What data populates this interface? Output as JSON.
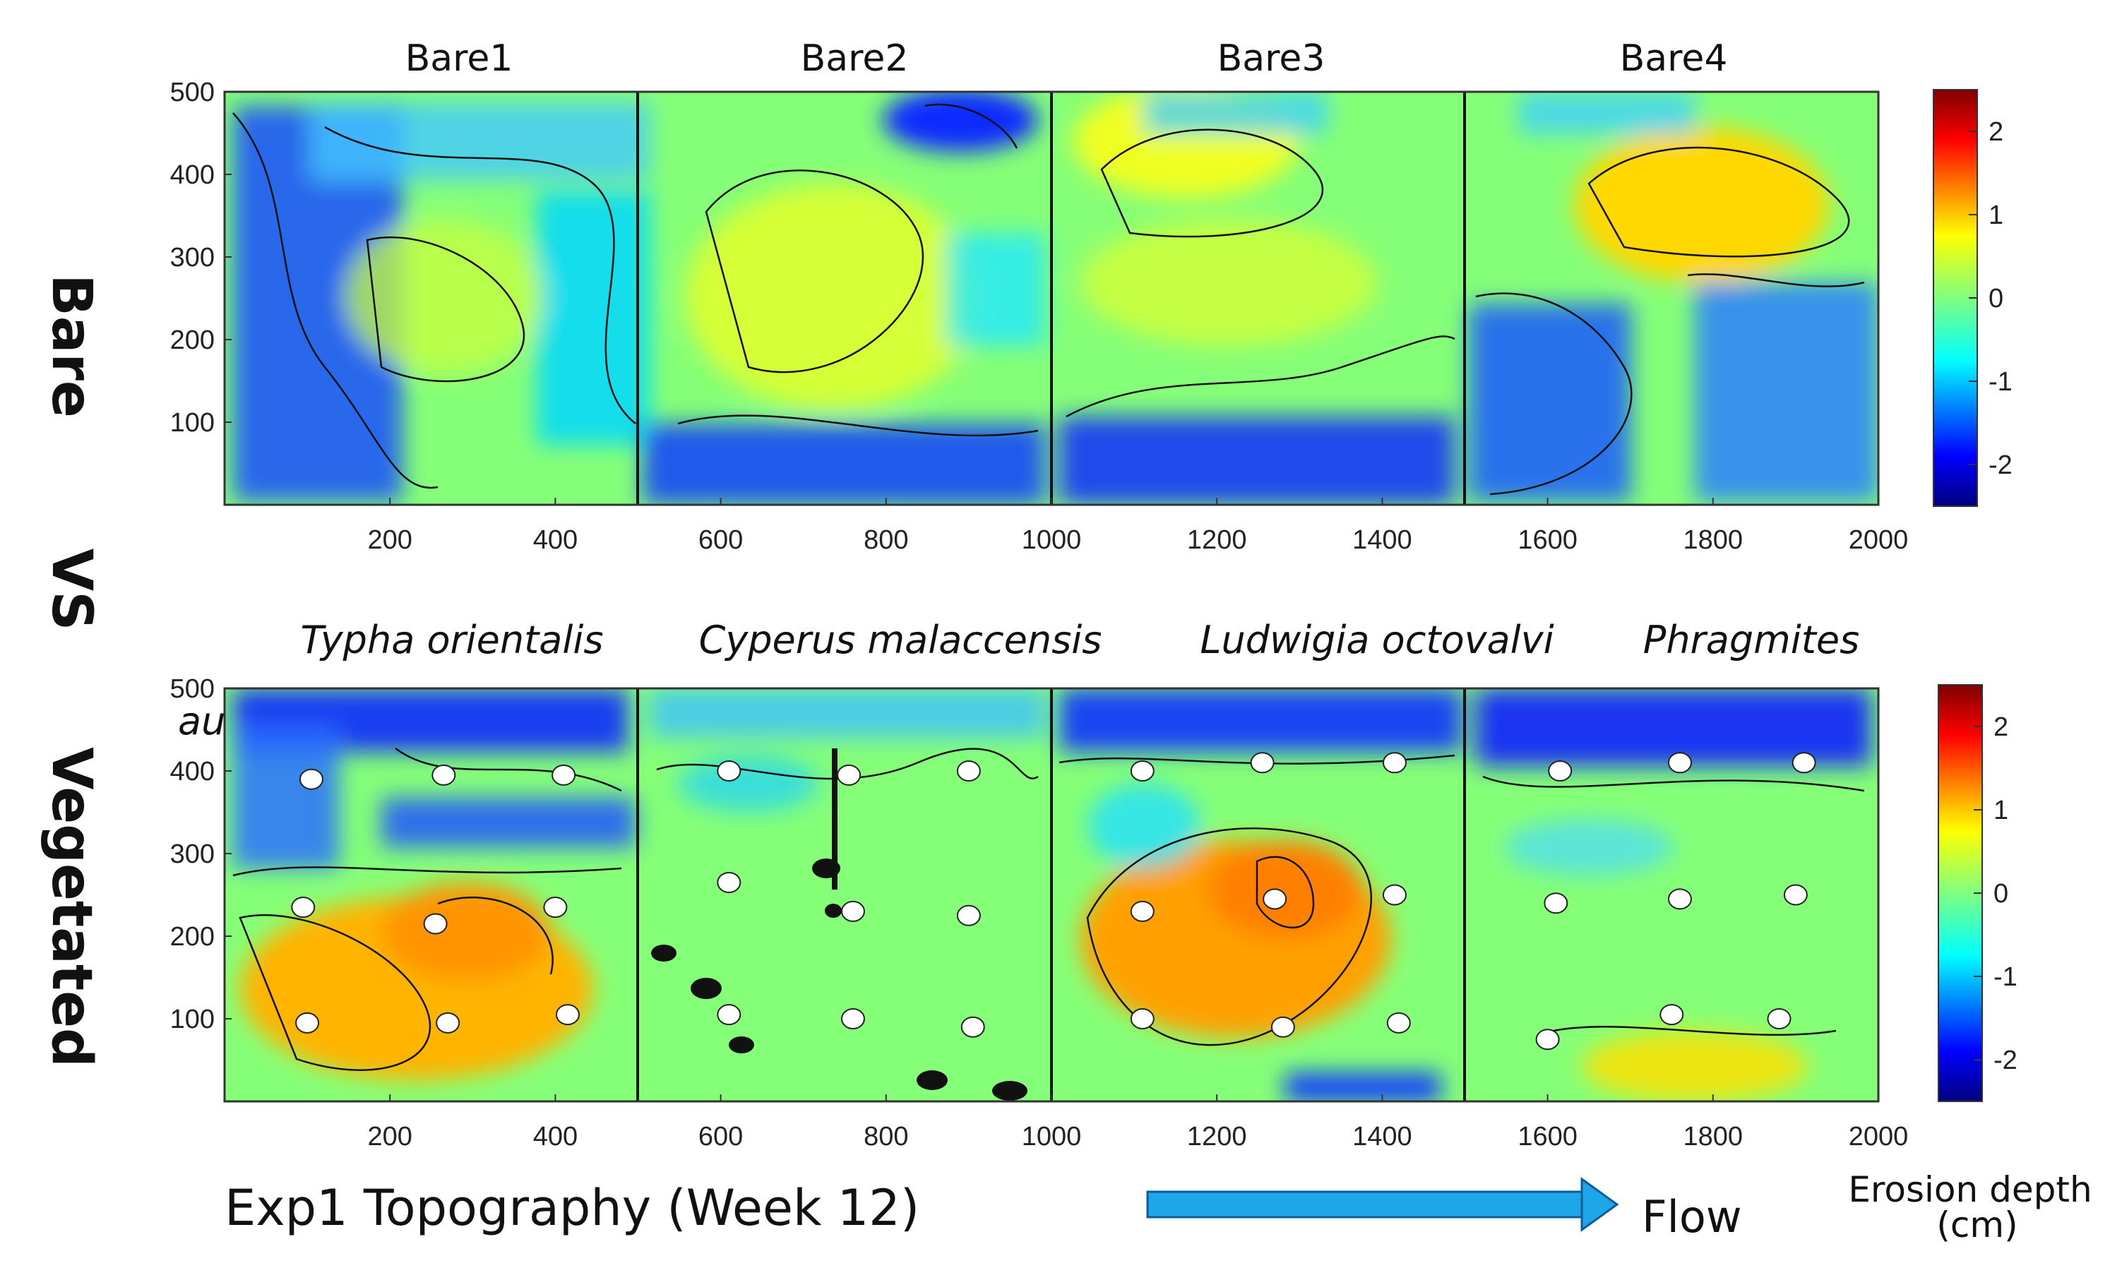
{
  "chart_data": [
    {
      "type": "heatmap",
      "row_label": "Bare",
      "panel_titles": [
        "Bare1",
        "Bare2",
        "Bare3",
        "Bare4"
      ],
      "x_ticks": [
        200,
        400,
        600,
        800,
        1000,
        1200,
        1400,
        1600,
        1800,
        2000
      ],
      "y_ticks": [
        100,
        200,
        300,
        400,
        500
      ],
      "xlim": [
        0,
        2000
      ],
      "ylim": [
        0,
        500
      ],
      "colorbar_ticks": [
        -2,
        -1,
        0,
        1,
        2
      ],
      "clim": [
        -2.5,
        2.5
      ],
      "colormap": "jet",
      "vegetation_markers": []
    },
    {
      "type": "heatmap",
      "row_label": "Vegetated",
      "panel_titles": [
        "Typha orientalis",
        "Cyperus malaccensis",
        "Ludwigia octovalvi",
        "Phragmites"
      ],
      "panel_title_overflow": "australis",
      "x_ticks": [
        200,
        400,
        600,
        800,
        1000,
        1200,
        1400,
        1600,
        1800,
        2000
      ],
      "y_ticks": [
        100,
        200,
        300,
        400,
        500
      ],
      "xlim": [
        0,
        2000
      ],
      "ylim": [
        0,
        500
      ],
      "colorbar_ticks": [
        -2,
        -1,
        0,
        1,
        2
      ],
      "clim": [
        -2.5,
        2.5
      ],
      "colormap": "jet",
      "vegetation_markers": [
        [
          105,
          390
        ],
        [
          265,
          395
        ],
        [
          410,
          395
        ],
        [
          95,
          235
        ],
        [
          255,
          215
        ],
        [
          400,
          235
        ],
        [
          100,
          95
        ],
        [
          270,
          95
        ],
        [
          415,
          105
        ],
        [
          610,
          400
        ],
        [
          755,
          395
        ],
        [
          900,
          400
        ],
        [
          610,
          265
        ],
        [
          760,
          230
        ],
        [
          900,
          225
        ],
        [
          610,
          105
        ],
        [
          760,
          100
        ],
        [
          905,
          90
        ],
        [
          1110,
          400
        ],
        [
          1255,
          410
        ],
        [
          1415,
          410
        ],
        [
          1110,
          230
        ],
        [
          1270,
          245
        ],
        [
          1415,
          250
        ],
        [
          1110,
          100
        ],
        [
          1280,
          90
        ],
        [
          1420,
          95
        ],
        [
          1615,
          400
        ],
        [
          1760,
          410
        ],
        [
          1910,
          410
        ],
        [
          1610,
          240
        ],
        [
          1760,
          245
        ],
        [
          1900,
          250
        ],
        [
          1600,
          75
        ],
        [
          1750,
          105
        ],
        [
          1880,
          100
        ]
      ]
    }
  ],
  "separator_label": "VS",
  "footer_title": "Exp1 Topography (Week 12)",
  "flow_label": "Flow",
  "colorbar_title_line1": "Erosion depth",
  "colorbar_title_line2": "(cm)"
}
